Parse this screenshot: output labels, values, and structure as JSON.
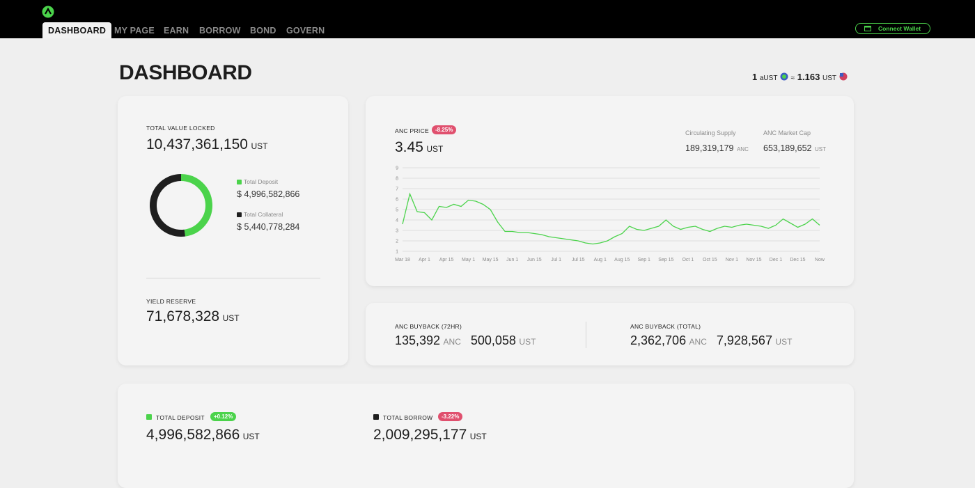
{
  "nav": {
    "tabs": [
      "DASHBOARD",
      "MY PAGE",
      "EARN",
      "BORROW",
      "BOND",
      "GOVERN"
    ],
    "wallet_button": "Connect Wallet"
  },
  "header": {
    "title": "DASHBOARD",
    "rate": {
      "left_amount": "1",
      "left_unit": "aUST",
      "approx": "≈",
      "right_amount": "1.163",
      "right_unit": "UST"
    }
  },
  "tvl": {
    "label": "TOTAL VALUE LOCKED",
    "value": "10,437,361,150",
    "unit": "UST"
  },
  "composition": {
    "type": "pie",
    "categories": [
      "Total Deposit",
      "Total Collateral"
    ],
    "values": [
      4996582866,
      5440778284
    ],
    "value_labels": [
      "4,996,582,866",
      "5,440,778,284"
    ],
    "colors": [
      "#4bd34b",
      "#1f1f1f"
    ],
    "currency": "$"
  },
  "yield_reserve": {
    "label": "YIELD RESERVE",
    "value": "71,678,328",
    "unit": "UST"
  },
  "anc_price": {
    "label": "ANC PRICE",
    "change": "-8.25%",
    "value": "3.45",
    "unit": "UST",
    "stats": [
      {
        "label": "Circulating Supply",
        "value": "189,319,179",
        "unit": "ANC"
      },
      {
        "label": "ANC Market Cap",
        "value": "653,189,652",
        "unit": "UST"
      }
    ]
  },
  "price_chart": {
    "type": "line",
    "color": "#4bd34b",
    "grid": true,
    "categories": [
      "Mar 18",
      null,
      null,
      "Apr 1",
      null,
      null,
      "Apr 15",
      null,
      null,
      "May 1",
      null,
      null,
      "May 15",
      null,
      null,
      "Jun 1",
      null,
      null,
      "Jun 15",
      null,
      null,
      "Jul 1",
      null,
      null,
      "Jul 15",
      null,
      null,
      "Aug 1",
      null,
      null,
      "Aug 15",
      null,
      null,
      "Sep 1",
      null,
      null,
      "Sep 15",
      null,
      null,
      "Oct 1",
      null,
      null,
      "Oct 15",
      null,
      null,
      "Nov 1",
      null,
      null,
      "Nov 15",
      null,
      null,
      "Dec 1",
      null,
      null,
      "Dec 15",
      null,
      null,
      "Now"
    ],
    "values": [
      3.6,
      6.5,
      4.8,
      4.7,
      4.0,
      5.3,
      5.2,
      5.5,
      5.3,
      5.9,
      5.8,
      5.5,
      5.0,
      3.8,
      2.9,
      2.9,
      2.8,
      2.8,
      2.7,
      2.6,
      2.4,
      2.3,
      2.2,
      2.1,
      2.0,
      1.8,
      1.7,
      1.8,
      2.0,
      2.4,
      2.7,
      3.4,
      3.1,
      3.0,
      3.2,
      3.4,
      4.0,
      3.4,
      3.1,
      3.3,
      3.4,
      3.1,
      2.9,
      3.2,
      3.4,
      3.3,
      3.5,
      3.6,
      3.5,
      3.4,
      3.2,
      3.5,
      4.1,
      3.7,
      3.3,
      3.6,
      4.1,
      3.5
    ],
    "ylim": [
      1,
      9
    ],
    "yticks": [
      1,
      2,
      3,
      4,
      5,
      6,
      7,
      8,
      9
    ]
  },
  "buyback": [
    {
      "label": "ANC BUYBACK (72HR)",
      "anc": "135,392",
      "anc_unit": "ANC",
      "ust": "500,058",
      "ust_unit": "UST"
    },
    {
      "label": "ANC BUYBACK (TOTAL)",
      "anc": "2,362,706",
      "anc_unit": "ANC",
      "ust": "7,928,567",
      "ust_unit": "UST"
    }
  ],
  "market": [
    {
      "label": "TOTAL DEPOSIT",
      "change": "+0.12%",
      "value": "4,996,582,866",
      "unit": "UST",
      "color": "#4bd34b",
      "badge_color": "#4bd34b"
    },
    {
      "label": "TOTAL BORROW",
      "change": "-3.22%",
      "value": "2,009,295,177",
      "unit": "UST",
      "color": "#1f1f1f",
      "badge_color": "#e0506e"
    }
  ]
}
